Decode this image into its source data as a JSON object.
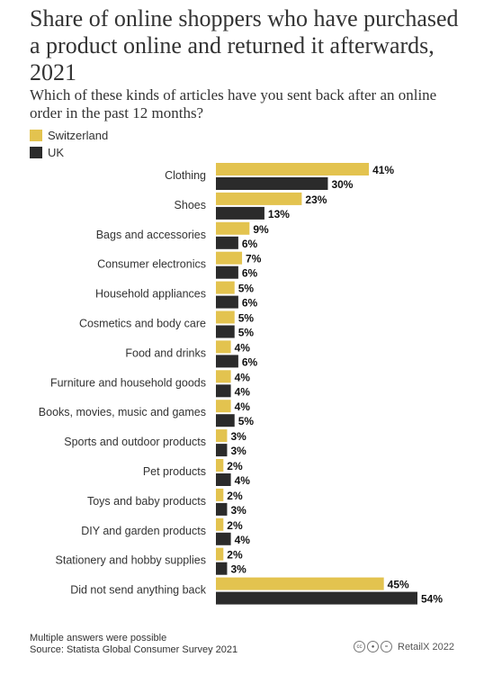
{
  "header": {
    "title": "Share of online shoppers who have purchased a product online and returned it afterwards, 2021",
    "subtitle": "Which of these kinds of articles have you sent back after an online order in the past 12 months?"
  },
  "legend": [
    {
      "label": "Switzerland",
      "color": "#e3c34f"
    },
    {
      "label": "UK",
      "color": "#2b2b2b"
    }
  ],
  "footer": {
    "note": "Multiple answers were possible",
    "source": "Source: Statista Global Consumer Survey 2021",
    "brand": "RetailX 2022",
    "icons": [
      "cc-icon",
      "by-icon",
      "nd-icon"
    ]
  },
  "chart_data": {
    "type": "bar",
    "orientation": "horizontal",
    "categories": [
      "Clothing",
      "Shoes",
      "Bags and accessories",
      "Consumer electronics",
      "Household appliances",
      "Cosmetics and body care",
      "Food and drinks",
      "Furniture and household goods",
      "Books, movies, music and games",
      "Sports and outdoor products",
      "Pet products",
      "Toys and baby products",
      "DIY and garden products",
      "Stationery and hobby supplies",
      "Did not send anything back"
    ],
    "series": [
      {
        "name": "Switzerland",
        "color": "#e3c34f",
        "values": [
          41,
          23,
          9,
          7,
          5,
          5,
          4,
          4,
          4,
          3,
          2,
          2,
          2,
          2,
          45
        ]
      },
      {
        "name": "UK",
        "color": "#2b2b2b",
        "values": [
          30,
          13,
          6,
          6,
          6,
          5,
          6,
          4,
          5,
          3,
          4,
          3,
          4,
          3,
          54
        ]
      }
    ],
    "value_suffix": "%",
    "xlim": [
      0,
      54
    ],
    "grid": false,
    "legend_position": "top-left"
  }
}
